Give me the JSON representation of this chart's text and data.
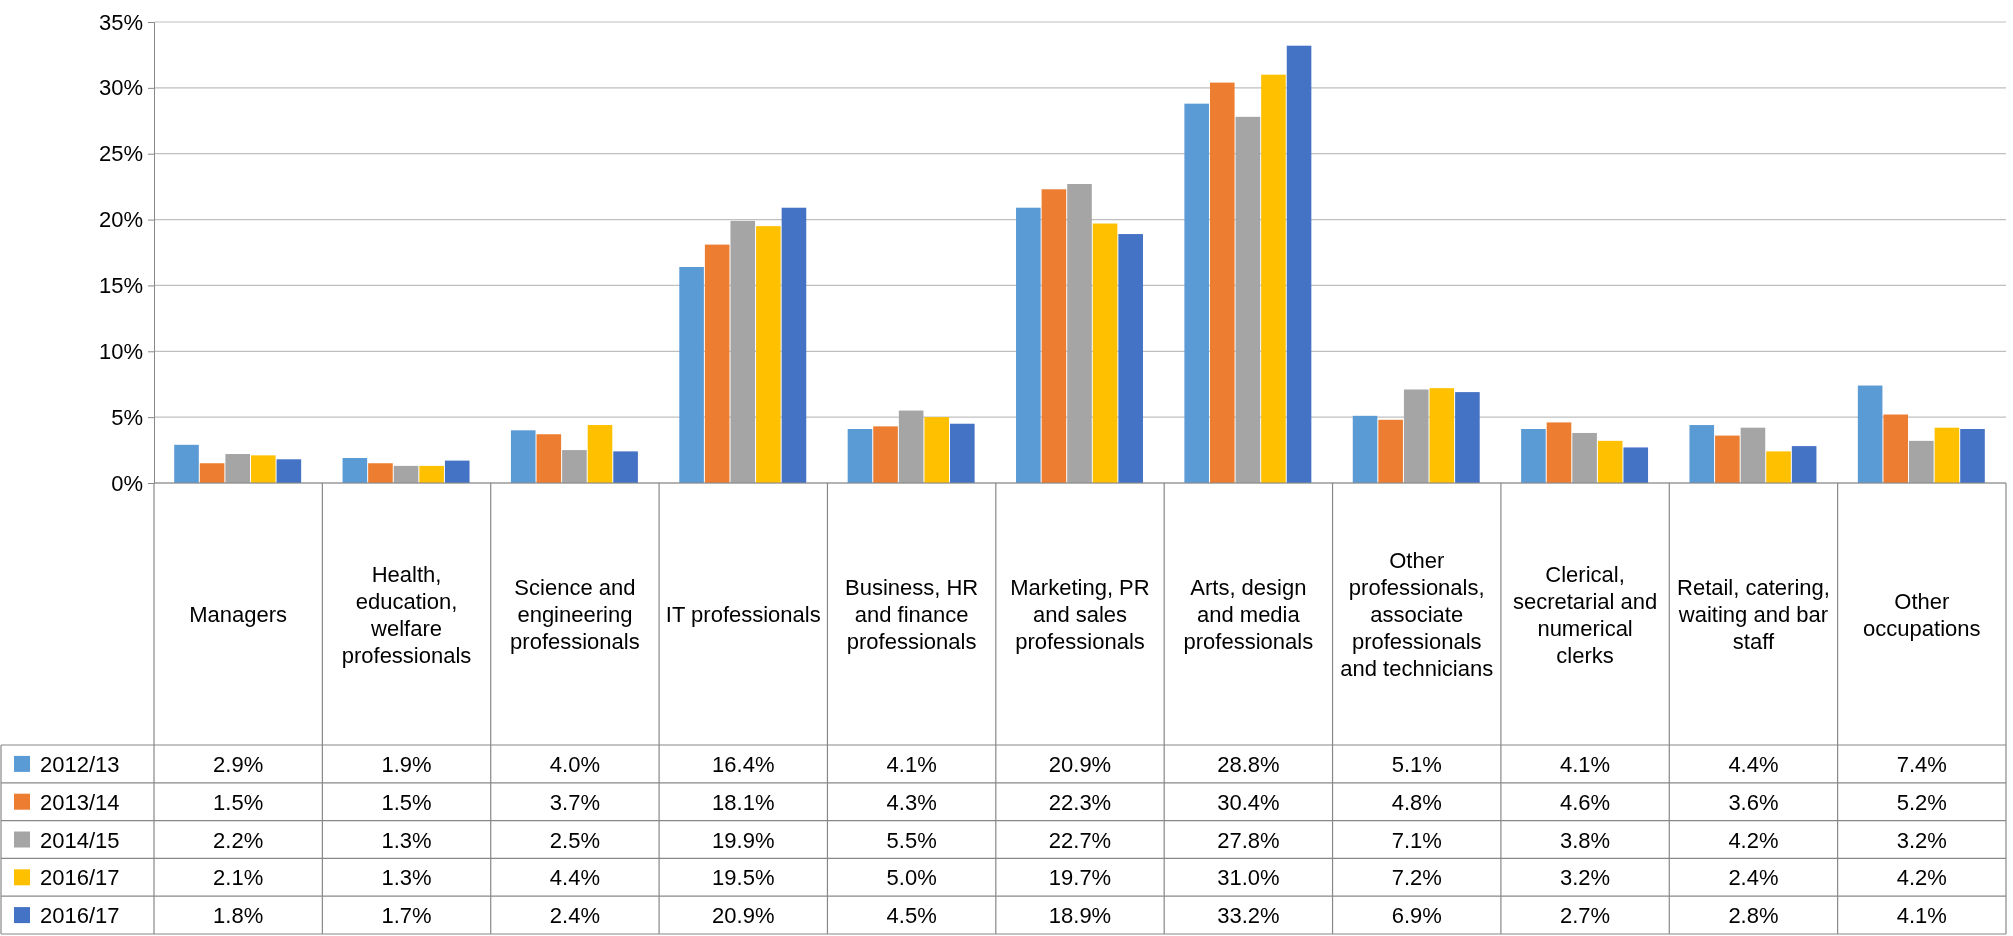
{
  "chart_data": {
    "type": "bar",
    "categories": [
      "Managers",
      "Health, education, welfare professionals",
      "Science and engineering professionals",
      "IT professionals",
      "Business, HR and finance professionals",
      "Marketing, PR and sales professionals",
      "Arts, design and media professionals",
      "Other professionals, associate professionals and technicians",
      "Clerical, secretarial and numerical clerks",
      "Retail, catering, waiting and bar staff",
      "Other occupations"
    ],
    "series": [
      {
        "name": "2012/13",
        "color": "#5b9bd5",
        "values": [
          2.9,
          1.9,
          4.0,
          16.4,
          4.1,
          20.9,
          28.8,
          5.1,
          4.1,
          4.4,
          7.4
        ],
        "value_labels": [
          "2.9%",
          "1.9%",
          "4.0%",
          "16.4%",
          "4.1%",
          "20.9%",
          "28.8%",
          "5.1%",
          "4.1%",
          "4.4%",
          "7.4%"
        ]
      },
      {
        "name": "2013/14",
        "color": "#ed7d31",
        "values": [
          1.5,
          1.5,
          3.7,
          18.1,
          4.3,
          22.3,
          30.4,
          4.8,
          4.6,
          3.6,
          5.2
        ],
        "value_labels": [
          "1.5%",
          "1.5%",
          "3.7%",
          "18.1%",
          "4.3%",
          "22.3%",
          "30.4%",
          "4.8%",
          "4.6%",
          "3.6%",
          "5.2%"
        ]
      },
      {
        "name": "2014/15",
        "color": "#a5a5a5",
        "values": [
          2.2,
          1.3,
          2.5,
          19.9,
          5.5,
          22.7,
          27.8,
          7.1,
          3.8,
          4.2,
          3.2
        ],
        "value_labels": [
          "2.2%",
          "1.3%",
          "2.5%",
          "19.9%",
          "5.5%",
          "22.7%",
          "27.8%",
          "7.1%",
          "3.8%",
          "4.2%",
          "3.2%"
        ]
      },
      {
        "name": "2016/17",
        "color": "#ffc000",
        "values": [
          2.1,
          1.3,
          4.4,
          19.5,
          5.0,
          19.7,
          31.0,
          7.2,
          3.2,
          2.4,
          4.2
        ],
        "value_labels": [
          "2.1%",
          "1.3%",
          "4.4%",
          "19.5%",
          "5.0%",
          "19.7%",
          "31.0%",
          "7.2%",
          "3.2%",
          "2.4%",
          "4.2%"
        ]
      },
      {
        "name": "2016/17",
        "color": "#4472c4",
        "values": [
          1.8,
          1.7,
          2.4,
          20.9,
          4.5,
          18.9,
          33.2,
          6.9,
          2.7,
          2.8,
          4.1
        ],
        "value_labels": [
          "1.8%",
          "1.7%",
          "2.4%",
          "20.9%",
          "4.5%",
          "18.9%",
          "33.2%",
          "6.9%",
          "2.7%",
          "2.8%",
          "4.1%"
        ]
      }
    ],
    "ylim": [
      0,
      35
    ],
    "yticks": [
      {
        "value": 0,
        "label": "0%"
      },
      {
        "value": 5,
        "label": "5%"
      },
      {
        "value": 10,
        "label": "10%"
      },
      {
        "value": 15,
        "label": "15%"
      },
      {
        "value": 20,
        "label": "20%"
      },
      {
        "value": 25,
        "label": "25%"
      },
      {
        "value": 30,
        "label": "30%"
      },
      {
        "value": 35,
        "label": "35%"
      }
    ],
    "grid": "y",
    "legend": "bottom"
  }
}
